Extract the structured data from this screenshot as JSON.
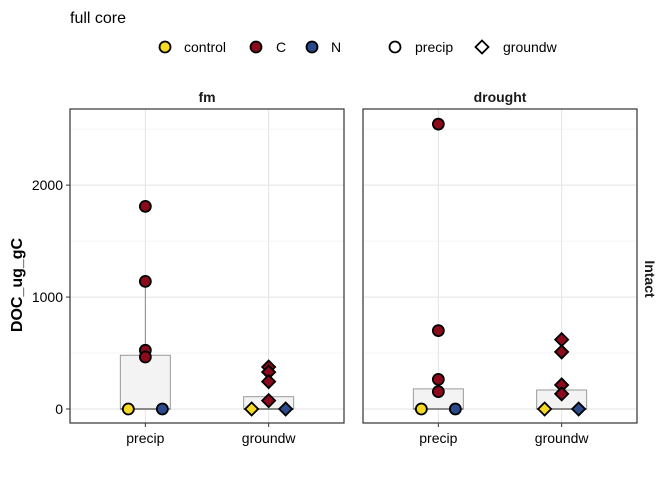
{
  "chart_data": {
    "type": "scatter",
    "title": "full core",
    "ylabel": "DOC_ug_gC",
    "xlabel": "",
    "ylim": [
      -125,
      2680
    ],
    "y_ticks": [
      0,
      1000,
      2000
    ],
    "categories": [
      "precip",
      "groundw"
    ],
    "row_strip": "Intact",
    "grid": true,
    "legend_position": "top",
    "fill_legend": [
      {
        "label": "control",
        "color": "#f5d922"
      },
      {
        "label": "C",
        "color": "#8b0a1c"
      },
      {
        "label": "N",
        "color": "#2b4a8c"
      }
    ],
    "shape_legend": [
      {
        "label": "precip",
        "shape": "circle"
      },
      {
        "label": "groundw",
        "shape": "diamond"
      }
    ],
    "panels": [
      {
        "label": "fm",
        "boxes": [
          {
            "category": "precip",
            "q1": 0,
            "median": 0,
            "q3": 480,
            "whisker_low": 0,
            "whisker_high": 1140
          },
          {
            "category": "groundw",
            "q1": 0,
            "median": 0,
            "q3": 110,
            "whisker_low": 0,
            "whisker_high": 110
          }
        ],
        "points": [
          {
            "category": "precip",
            "group": "control",
            "y": 0
          },
          {
            "category": "precip",
            "group": "C",
            "y": 1810
          },
          {
            "category": "precip",
            "group": "C",
            "y": 1140
          },
          {
            "category": "precip",
            "group": "C",
            "y": 525
          },
          {
            "category": "precip",
            "group": "C",
            "y": 465
          },
          {
            "category": "precip",
            "group": "N",
            "y": 0
          },
          {
            "category": "groundw",
            "group": "control",
            "y": 0
          },
          {
            "category": "groundw",
            "group": "C",
            "y": 375
          },
          {
            "category": "groundw",
            "group": "C",
            "y": 330
          },
          {
            "category": "groundw",
            "group": "C",
            "y": 245
          },
          {
            "category": "groundw",
            "group": "C",
            "y": 75
          },
          {
            "category": "groundw",
            "group": "N",
            "y": 0
          }
        ]
      },
      {
        "label": "drought",
        "boxes": [
          {
            "category": "precip",
            "q1": 0,
            "median": 0,
            "q3": 180,
            "whisker_low": 0,
            "whisker_high": 180
          },
          {
            "category": "groundw",
            "q1": 0,
            "median": 0,
            "q3": 170,
            "whisker_low": 0,
            "whisker_high": 170
          }
        ],
        "points": [
          {
            "category": "precip",
            "group": "control",
            "y": 0
          },
          {
            "category": "precip",
            "group": "C",
            "y": 2545
          },
          {
            "category": "precip",
            "group": "C",
            "y": 700
          },
          {
            "category": "precip",
            "group": "C",
            "y": 265
          },
          {
            "category": "precip",
            "group": "C",
            "y": 155
          },
          {
            "category": "precip",
            "group": "N",
            "y": 0
          },
          {
            "category": "groundw",
            "group": "control",
            "y": 0
          },
          {
            "category": "groundw",
            "group": "C",
            "y": 620
          },
          {
            "category": "groundw",
            "group": "C",
            "y": 510
          },
          {
            "category": "groundw",
            "group": "C",
            "y": 215
          },
          {
            "category": "groundw",
            "group": "C",
            "y": 135
          },
          {
            "category": "groundw",
            "group": "N",
            "y": 0
          }
        ]
      }
    ]
  }
}
